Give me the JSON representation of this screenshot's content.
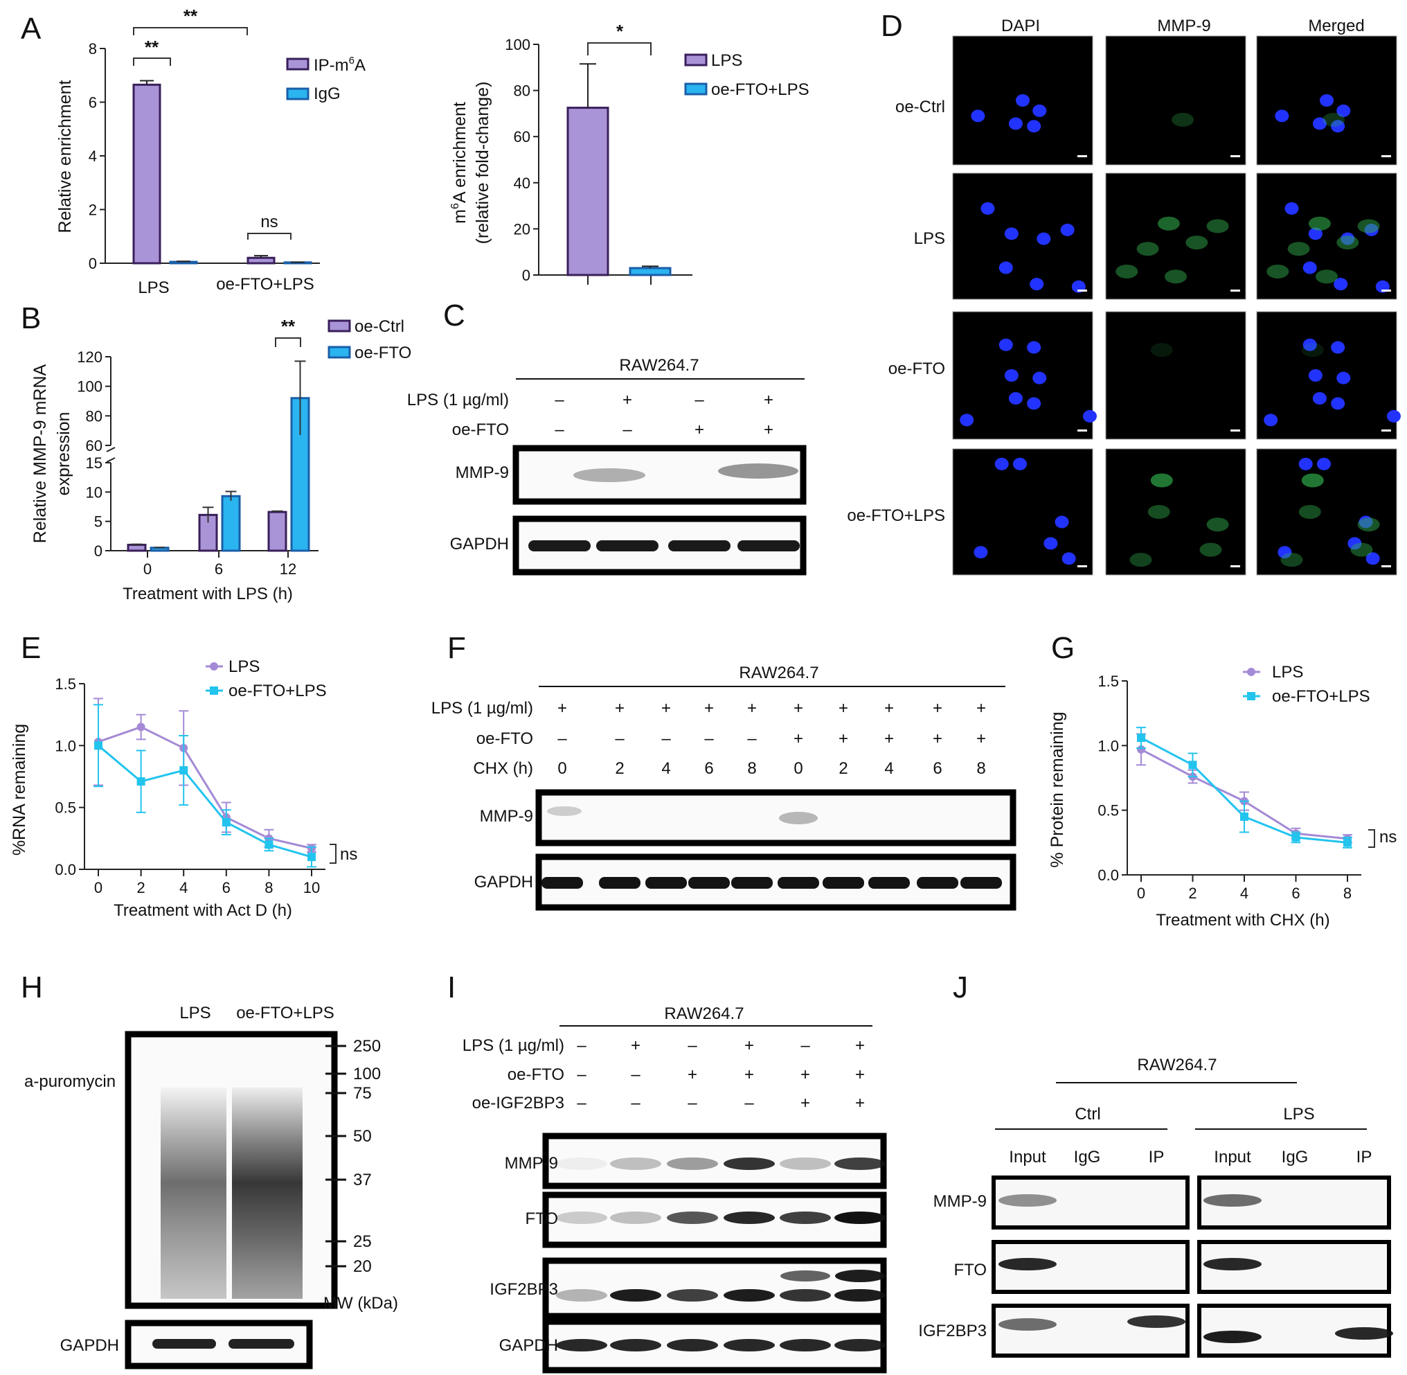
{
  "panels": {
    "A": "A",
    "B": "B",
    "C": "C",
    "D": "D",
    "E": "E",
    "F": "F",
    "G": "G",
    "H": "H",
    "I": "I",
    "J": "J"
  },
  "colors": {
    "purple": "#a994d8",
    "purple_edge": "#3a1f5a",
    "blue": "#2ab4f0",
    "blue_edge": "#1a5ea8",
    "line_purple": "#a48ad6",
    "line_blue": "#22c4ee"
  },
  "chart_data": [
    {
      "id": "A1",
      "type": "bar",
      "categories": [
        "LPS",
        "oe-FTO+LPS"
      ],
      "series": [
        {
          "name": "IP-m6A",
          "values": [
            6.65,
            0.2
          ],
          "errors": [
            0.15,
            0.08
          ]
        },
        {
          "name": "IgG",
          "values": [
            0.05,
            0.03
          ],
          "errors": [
            0.02,
            0.01
          ]
        }
      ],
      "ylabel": "Relative enrichment",
      "ylim": [
        0,
        8
      ],
      "yticks": [
        0,
        2,
        4,
        6,
        8
      ],
      "annotations": [
        "**",
        "**",
        "ns"
      ]
    },
    {
      "id": "A2",
      "type": "bar",
      "categories": [
        "LPS",
        "oe-FTO+LPS"
      ],
      "values": [
        72.5,
        3.0
      ],
      "errors": [
        19,
        0.8
      ],
      "legend": [
        "LPS",
        "oe-FTO+LPS"
      ],
      "ylabel_line1": "m6A enrichment",
      "ylabel_line2": "(relative fold-change)",
      "ylim": [
        0,
        100
      ],
      "yticks": [
        0,
        20,
        40,
        60,
        80,
        100
      ],
      "annotations": [
        "*"
      ]
    },
    {
      "id": "B",
      "type": "bar",
      "categories": [
        "0",
        "6",
        "12"
      ],
      "series": [
        {
          "name": "oe-Ctrl",
          "values": [
            1.0,
            6.1,
            6.6
          ],
          "errors": [
            0.1,
            1.3,
            0.15
          ]
        },
        {
          "name": "oe-FTO",
          "values": [
            0.5,
            9.3,
            92.0
          ],
          "errors": [
            0.05,
            0.8,
            25
          ]
        }
      ],
      "xlabel": "Treatment with LPS (h)",
      "ylabel_line1": "Relative MMP-9 mRNA",
      "ylabel_line2": "expression",
      "yticks_lower": [
        0,
        5,
        10,
        15
      ],
      "yticks_upper": [
        60,
        80,
        100,
        120
      ],
      "annotations": [
        "**"
      ]
    },
    {
      "id": "E",
      "type": "line",
      "x": [
        0,
        2,
        4,
        6,
        8,
        10
      ],
      "series": [
        {
          "name": "LPS",
          "values": [
            1.03,
            1.15,
            0.98,
            0.42,
            0.25,
            0.17
          ],
          "errors": [
            0.35,
            0.1,
            0.3,
            0.12,
            0.07,
            0.03
          ]
        },
        {
          "name": "oe-FTO+LPS",
          "values": [
            1.0,
            0.71,
            0.8,
            0.38,
            0.2,
            0.1
          ],
          "errors": [
            0.33,
            0.25,
            0.28,
            0.1,
            0.05,
            0.08
          ]
        }
      ],
      "xlabel": "Treatment with Act D (h)",
      "ylabel": "%RNA remaining",
      "ylim": [
        0,
        1.5
      ],
      "yticks": [
        "0.0",
        "0.5",
        "1.0",
        "1.5"
      ],
      "annotations": [
        "ns"
      ]
    },
    {
      "id": "G",
      "type": "line",
      "x": [
        0,
        2,
        4,
        6,
        8
      ],
      "series": [
        {
          "name": "LPS",
          "values": [
            0.97,
            0.76,
            0.57,
            0.32,
            0.28
          ],
          "errors": [
            0.12,
            0.05,
            0.07,
            0.04,
            0.03
          ]
        },
        {
          "name": "oe-FTO+LPS",
          "values": [
            1.06,
            0.85,
            0.45,
            0.29,
            0.25
          ],
          "errors": [
            0.08,
            0.09,
            0.12,
            0.04,
            0.04
          ]
        }
      ],
      "xlabel": "Treatment with CHX (h)",
      "ylabel": "% Protein remaining",
      "ylim": [
        0,
        1.5
      ],
      "yticks": [
        "0.0",
        "0.5",
        "1.0",
        "1.5"
      ],
      "annotations": [
        "ns"
      ]
    }
  ],
  "C": {
    "cell_line": "RAW264.7",
    "rows": [
      {
        "label": "LPS (1 µg/ml)",
        "values": [
          "–",
          "+",
          "–",
          "+"
        ]
      },
      {
        "label": "oe-FTO",
        "values": [
          "–",
          "–",
          "+",
          "+"
        ]
      }
    ],
    "bands": [
      "MMP-9",
      "GAPDH"
    ]
  },
  "D": {
    "columns": [
      "DAPI",
      "MMP-9",
      "Merged"
    ],
    "rows": [
      "oe-Ctrl",
      "LPS",
      "oe-FTO",
      "oe-FTO+LPS"
    ]
  },
  "F": {
    "cell_line": "RAW264.7",
    "rows": [
      {
        "label": "LPS (1 µg/ml)",
        "values": [
          "+",
          "+",
          "+",
          "+",
          "+",
          "+",
          "+",
          "+",
          "+",
          "+"
        ]
      },
      {
        "label": "oe-FTO",
        "values": [
          "–",
          "–",
          "–",
          "–",
          "–",
          "+",
          "+",
          "+",
          "+",
          "+"
        ]
      },
      {
        "label": "CHX (h)",
        "values": [
          "0",
          "2",
          "4",
          "6",
          "8",
          "0",
          "2",
          "4",
          "6",
          "8"
        ]
      }
    ],
    "bands": [
      "MMP-9",
      "GAPDH"
    ]
  },
  "H": {
    "columns": [
      "LPS",
      "oe-FTO+LPS"
    ],
    "blot_label": "a-puromycin",
    "markers": [
      "250",
      "100",
      "75",
      "50",
      "37",
      "25",
      "20"
    ],
    "mw_label": "MW (kDa)",
    "loading": "GAPDH"
  },
  "I": {
    "cell_line": "RAW264.7",
    "rows": [
      {
        "label": "LPS (1 µg/ml)",
        "values": [
          "–",
          "+",
          "–",
          "+",
          "–",
          "+"
        ]
      },
      {
        "label": "oe-FTO",
        "values": [
          "–",
          "–",
          "+",
          "+",
          "+",
          "+"
        ]
      },
      {
        "label": "oe-IGF2BP3",
        "values": [
          "–",
          "–",
          "–",
          "–",
          "+",
          "+"
        ]
      }
    ],
    "bands": [
      "MMP-9",
      "FTO",
      "IGF2BP3",
      "GAPDH"
    ]
  },
  "J": {
    "cell_line": "RAW264.7",
    "groups": [
      "Ctrl",
      "LPS"
    ],
    "lanes": [
      "Input",
      "IgG",
      "IP"
    ],
    "bands": [
      "MMP-9",
      "FTO",
      "IGF2BP3"
    ]
  }
}
